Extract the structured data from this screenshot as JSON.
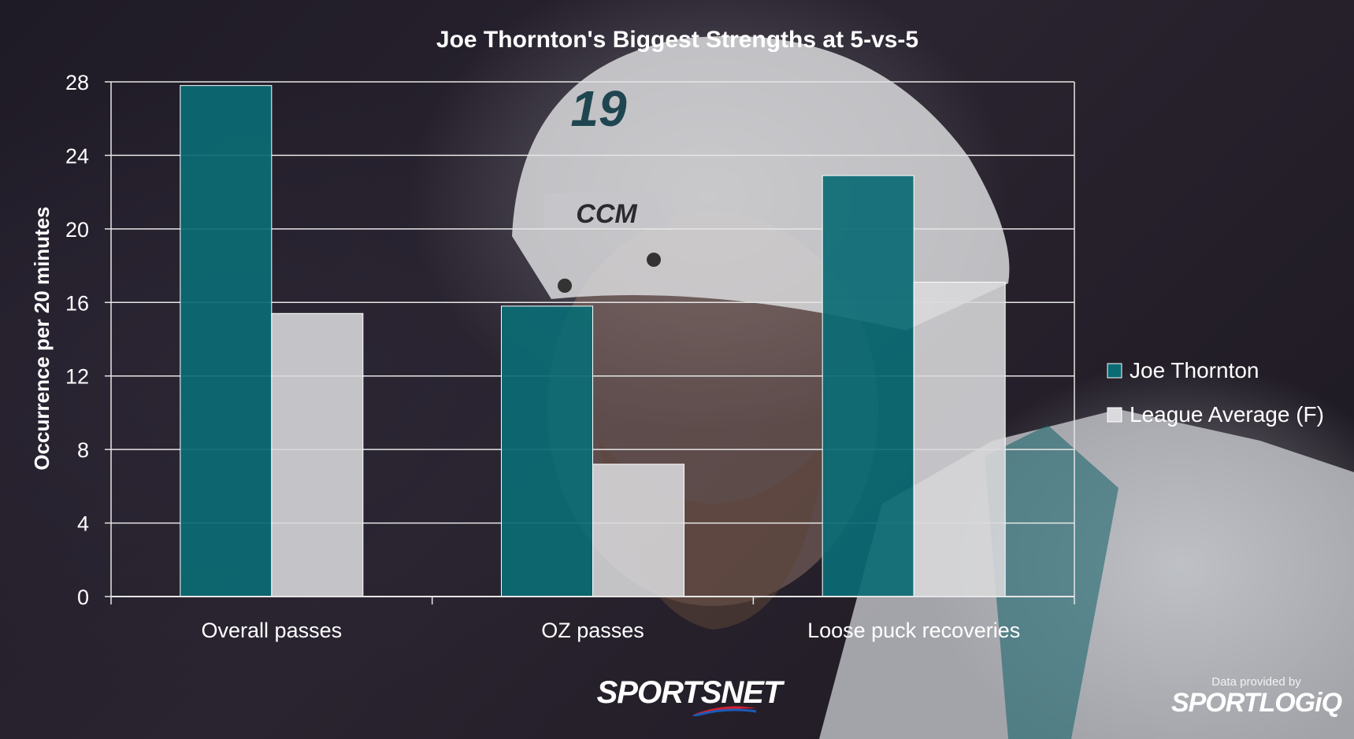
{
  "chart_data": {
    "type": "bar",
    "title": "Joe Thornton's Biggest Strengths at 5-vs-5",
    "ylabel": "Occurrence per 20 minutes",
    "xlabel": "",
    "categories": [
      "Overall passes",
      "OZ passes",
      "Loose puck recoveries"
    ],
    "series": [
      {
        "name": "Joe Thornton",
        "values": [
          27.8,
          15.8,
          22.9
        ],
        "color": "#0b6b74"
      },
      {
        "name": "League Average (F)",
        "values": [
          15.4,
          7.2,
          17.1
        ],
        "color": "#dadadc"
      }
    ],
    "ylim": [
      0,
      28
    ],
    "yticks": [
      0,
      4,
      8,
      12,
      16,
      20,
      24,
      28
    ],
    "grid": true,
    "legend_position": "right"
  },
  "footer": {
    "credit": "Data provided by",
    "provider_logo": "SPORTLOGiQ",
    "brand_logo": "SPORTSNET"
  },
  "background": {
    "description_icon": "hockey-player-photo",
    "helmet_text": "CCM",
    "jersey_number": "19"
  }
}
